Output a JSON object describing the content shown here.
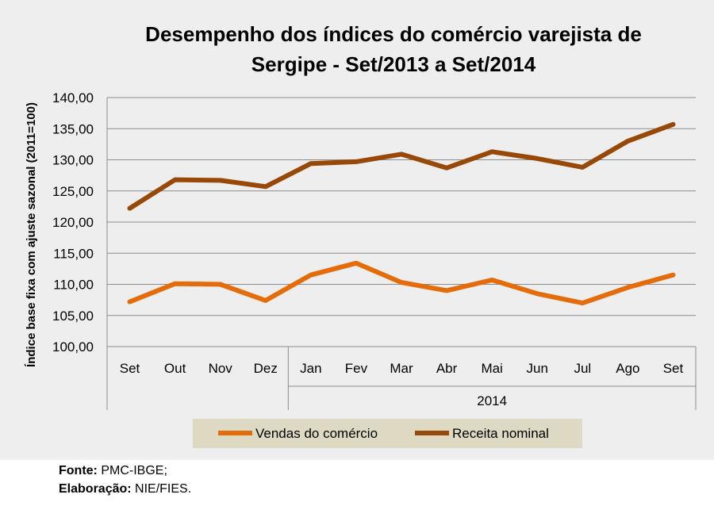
{
  "chart_data": {
    "type": "line",
    "title_line1": "Desempenho dos índices do comércio varejista de",
    "title_line2": "Sergipe - Set/2013 a Set/2014",
    "ylabel": "Índice base fixa com ajuste sazonal  (2011=100)",
    "xlabel": "",
    "categories": [
      "Set",
      "Out",
      "Nov",
      "Dez",
      "Jan",
      "Fev",
      "Mar",
      "Abr",
      "Mai",
      "Jun",
      "Jul",
      "Ago",
      "Set"
    ],
    "year_group_label": "2014",
    "ylim": [
      100,
      140
    ],
    "yticks": [
      "100,00",
      "105,00",
      "110,00",
      "115,00",
      "120,00",
      "125,00",
      "130,00",
      "135,00",
      "140,00"
    ],
    "grid": true,
    "legend_position": "bottom",
    "series": [
      {
        "name": "Vendas do comércio",
        "color": "#e46c0a",
        "values": [
          107.2,
          110.1,
          110.0,
          107.4,
          111.5,
          113.4,
          110.3,
          109.0,
          110.7,
          108.5,
          107.0,
          109.5,
          111.5
        ]
      },
      {
        "name": "Receita nominal",
        "color": "#984807",
        "values": [
          122.2,
          126.8,
          126.7,
          125.7,
          129.4,
          129.7,
          130.9,
          128.7,
          131.3,
          130.2,
          128.8,
          133.0,
          135.7
        ]
      }
    ]
  },
  "source": {
    "fonte_label": "Fonte:",
    "fonte_value": " PMC-IBGE;",
    "elab_label": "Elaboração:",
    "elab_value": "  NIE/FIES."
  }
}
